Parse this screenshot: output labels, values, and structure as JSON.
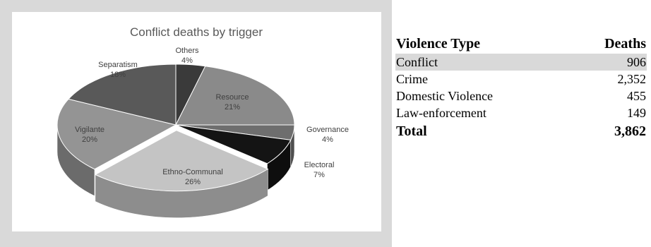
{
  "chart_data": {
    "type": "pie",
    "title": "Conflict deaths by trigger",
    "slices": [
      {
        "label": "Others",
        "value": 4,
        "pct_label": "4%",
        "color": "#3a3a3a"
      },
      {
        "label": "Resource",
        "value": 21,
        "pct_label": "21%",
        "color": "#8a8a8a"
      },
      {
        "label": "Governance",
        "value": 4,
        "pct_label": "4%",
        "color": "#6e6e6e"
      },
      {
        "label": "Electoral",
        "value": 7,
        "pct_label": "7%",
        "color": "#141414"
      },
      {
        "label": "Ethno-Communal",
        "value": 26,
        "pct_label": "26%",
        "color": "#c4c4c4"
      },
      {
        "label": "Vigilante",
        "value": 20,
        "pct_label": "20%",
        "color": "#949494"
      },
      {
        "label": "Separatism",
        "value": 18,
        "pct_label": "18%",
        "color": "#595959"
      }
    ],
    "exploded": "Ethno-Communal",
    "style": "3d"
  },
  "table": {
    "headers": [
      "Violence Type",
      "Deaths"
    ],
    "rows": [
      {
        "type": "Conflict",
        "deaths": "906"
      },
      {
        "type": "Crime",
        "deaths": "2,352"
      },
      {
        "type": "Domestic Violence",
        "deaths": "455"
      },
      {
        "type": "Law-enforcement",
        "deaths": "149"
      }
    ],
    "total": {
      "type": "Total",
      "deaths": "3,862"
    }
  }
}
